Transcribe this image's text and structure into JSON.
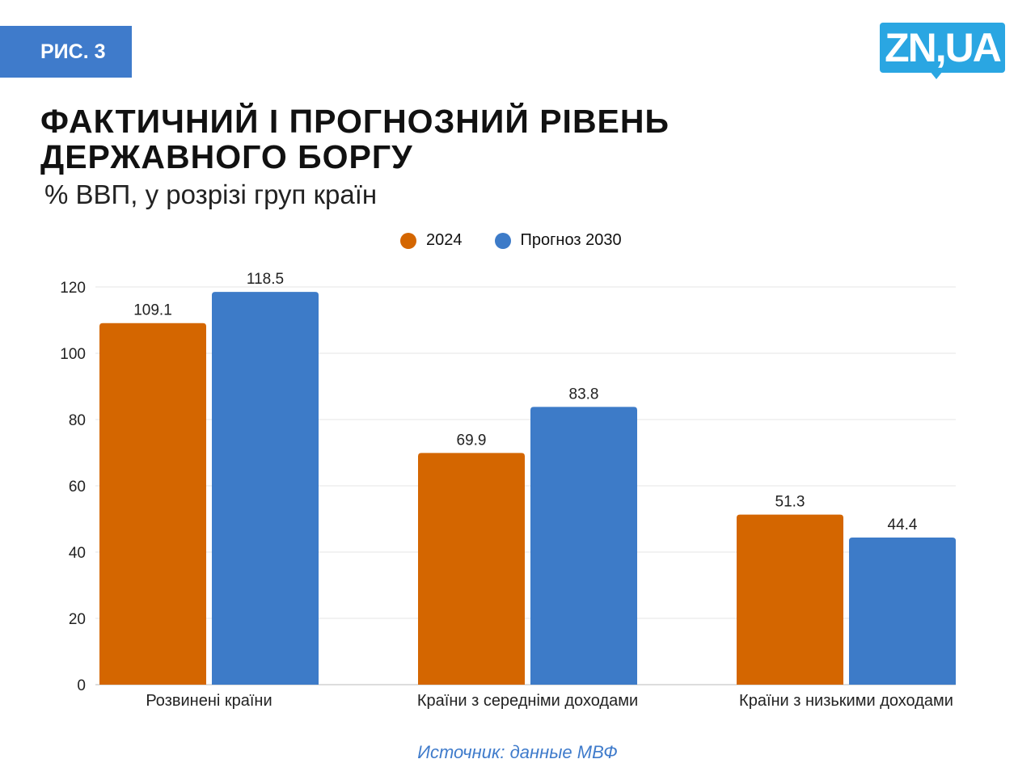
{
  "badge": "РИС. 3",
  "logo": "ZN,UA",
  "title": "ФАКТИЧНИЙ І ПРОГНОЗНИЙ РІВЕНЬ ДЕРЖАВНОГО БОРГУ",
  "subtitle": "% ВВП, у розрізі груп країн",
  "source": "Источник: данные МВФ",
  "chart_data": {
    "type": "bar",
    "title": "ФАКТИЧНИЙ І ПРОГНОЗНИЙ РІВЕНЬ ДЕРЖАВНОГО БОРГУ",
    "subtitle": "% ВВП, у розрізі груп країн",
    "categories": [
      "Розвинені країни",
      "Країни з середніми доходами",
      "Країни з низькими доходами"
    ],
    "series": [
      {
        "name": "2024",
        "color": "#d46600",
        "values": [
          109.1,
          69.9,
          51.3
        ]
      },
      {
        "name": "Прогноз 2030",
        "color": "#3d7bc8",
        "values": [
          118.5,
          83.8,
          44.4
        ]
      }
    ],
    "yticks": [
      0,
      20,
      40,
      60,
      80,
      100,
      120
    ],
    "ylim": [
      0,
      120
    ],
    "grid": true,
    "legend": "top-center",
    "xlabel": "",
    "ylabel": ""
  }
}
